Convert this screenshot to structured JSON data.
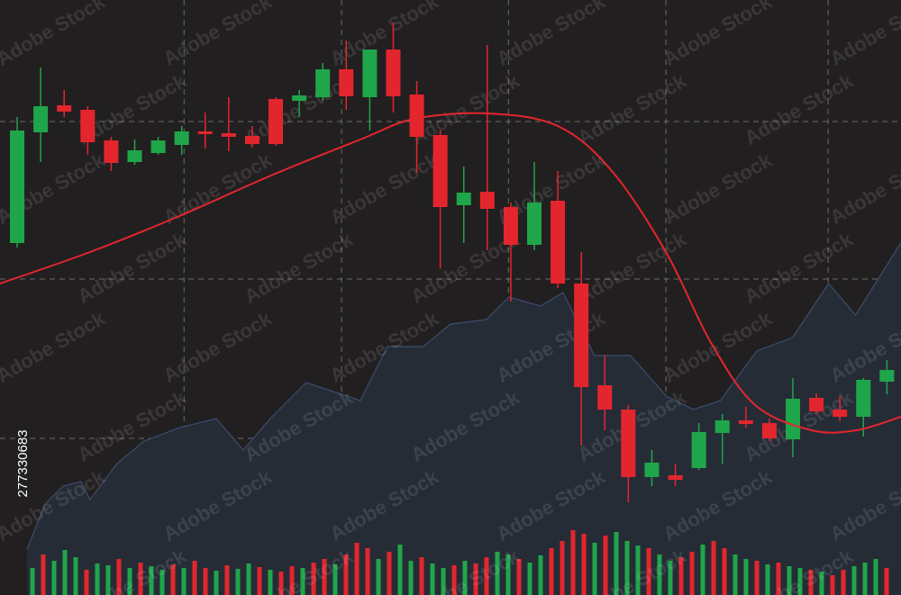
{
  "chart_data": {
    "type": "candlestick",
    "watermark": "Adobe Stock",
    "stock_id": "277330683",
    "background": "#221f20",
    "up_color": "#1fa64a",
    "down_color": "#e3262e",
    "grid": true,
    "xlim": [
      -0.73,
      37.6
    ],
    "ylim": [
      0,
      661
    ],
    "xticks": [
      7.1,
      13.8,
      20.9,
      27.6,
      34.5
    ],
    "yticks": [
      526,
      351,
      174
    ],
    "open": [
      391,
      514,
      544,
      539,
      505,
      481,
      491,
      500,
      515,
      513,
      510,
      551,
      549,
      553,
      584,
      553,
      606,
      556,
      511,
      433,
      448,
      431,
      389,
      438,
      346,
      233,
      206,
      131,
      133,
      141,
      180,
      194,
      191,
      173,
      219,
      206,
      198,
      237
    ],
    "high": [
      531,
      586,
      561,
      543,
      509,
      506,
      509,
      521,
      536,
      553,
      521,
      553,
      561,
      591,
      616,
      606,
      636,
      571,
      516,
      476,
      611,
      436,
      481,
      471,
      381,
      266,
      211,
      161,
      146,
      191,
      201,
      209,
      196,
      241,
      224,
      221,
      241,
      261
    ],
    "low": [
      386,
      481,
      531,
      489,
      471,
      478,
      489,
      489,
      496,
      493,
      497,
      499,
      531,
      549,
      539,
      516,
      536,
      469,
      363,
      391,
      383,
      326,
      383,
      341,
      166,
      183,
      103,
      121,
      121,
      139,
      146,
      186,
      171,
      153,
      201,
      193,
      176,
      223
    ],
    "close": [
      516,
      543,
      537,
      503,
      480,
      494,
      505,
      515,
      512,
      509,
      501,
      501,
      555,
      584,
      554,
      606,
      554,
      509,
      431,
      447,
      429,
      389,
      436,
      346,
      231,
      206,
      131,
      147,
      128,
      181,
      194,
      190,
      174,
      218,
      204,
      198,
      239,
      250
    ],
    "moving_average": {
      "color": "#e3262e",
      "x": [
        -0.73,
        3.1,
        6.9,
        10.8,
        14.6,
        16.9,
        20.0,
        23.0,
        25.3,
        27.6,
        29.5,
        31.4,
        33.8,
        35.7,
        37.6
      ],
      "values": [
        346,
        381,
        421,
        466,
        506,
        529,
        535,
        521,
        471,
        381,
        281,
        211,
        183,
        183,
        198
      ]
    },
    "area": {
      "color": "#262c36",
      "line_color": "#3b4d6e",
      "x": [
        0.42,
        1.19,
        1.95,
        2.72,
        3.1,
        4.25,
        5.4,
        6.93,
        8.47,
        9.62,
        10.77,
        12.3,
        13.45,
        14.6,
        15.75,
        17.28,
        18.43,
        19.96,
        20.92,
        22.26,
        23.22,
        24.56,
        26.09,
        27.62,
        28.77,
        29.92,
        31.46,
        32.99,
        34.52,
        35.67,
        37.59
      ],
      "values": [
        51,
        101,
        121,
        126,
        106,
        146,
        171,
        186,
        196,
        161,
        196,
        236,
        226,
        216,
        276,
        276,
        301,
        306,
        331,
        321,
        336,
        266,
        266,
        221,
        206,
        216,
        271,
        286,
        346,
        311,
        391
      ]
    },
    "volume": {
      "values": [
        30,
        45,
        38,
        50,
        42,
        28,
        35,
        33,
        40,
        30,
        36,
        32,
        28,
        34,
        30,
        38,
        30,
        27,
        33,
        29,
        35,
        31,
        28,
        26,
        32,
        30,
        36,
        40,
        34,
        45,
        58,
        52,
        40,
        48,
        56,
        38,
        42,
        35,
        30,
        33,
        38,
        35,
        42,
        48,
        45,
        40,
        36,
        44,
        52,
        60,
        72,
        68,
        58,
        66,
        70,
        60,
        55,
        52,
        45,
        38,
        42,
        48,
        56,
        60,
        52,
        45,
        40,
        38,
        34,
        36,
        32,
        30,
        28,
        26,
        22,
        28,
        32,
        36,
        40,
        30
      ],
      "colors": [
        "#1fa64a",
        "#e3262e",
        "#1fa64a",
        "#1fa64a",
        "#1fa64a",
        "#e3262e",
        "#1fa64a",
        "#1fa64a",
        "#e3262e",
        "#1fa64a",
        "#e3262e",
        "#1fa64a",
        "#1fa64a",
        "#e3262e",
        "#1fa64a",
        "#e3262e",
        "#e3262e",
        "#1fa64a",
        "#e3262e",
        "#1fa64a",
        "#1fa64a",
        "#e3262e",
        "#1fa64a",
        "#e3262e",
        "#e3262e",
        "#1fa64a",
        "#e3262e",
        "#e3262e",
        "#1fa64a",
        "#e3262e",
        "#e3262e",
        "#e3262e",
        "#1fa64a",
        "#e3262e",
        "#1fa64a",
        "#1fa64a",
        "#e3262e",
        "#1fa64a",
        "#1fa64a",
        "#e3262e",
        "#1fa64a",
        "#e3262e",
        "#e3262e",
        "#1fa64a",
        "#1fa64a",
        "#e3262e",
        "#1fa64a",
        "#1fa64a",
        "#e3262e",
        "#e3262e",
        "#e3262e",
        "#e3262e",
        "#1fa64a",
        "#e3262e",
        "#1fa64a",
        "#1fa64a",
        "#1fa64a",
        "#e3262e",
        "#1fa64a",
        "#1fa64a",
        "#e3262e",
        "#e3262e",
        "#1fa64a",
        "#e3262e",
        "#e3262e",
        "#1fa64a",
        "#1fa64a",
        "#e3262e",
        "#1fa64a",
        "#e3262e",
        "#1fa64a",
        "#1fa64a",
        "#e3262e",
        "#1fa64a",
        "#e3262e",
        "#e3262e",
        "#1fa64a",
        "#1fa64a",
        "#1fa64a",
        "#e3262e"
      ]
    }
  }
}
